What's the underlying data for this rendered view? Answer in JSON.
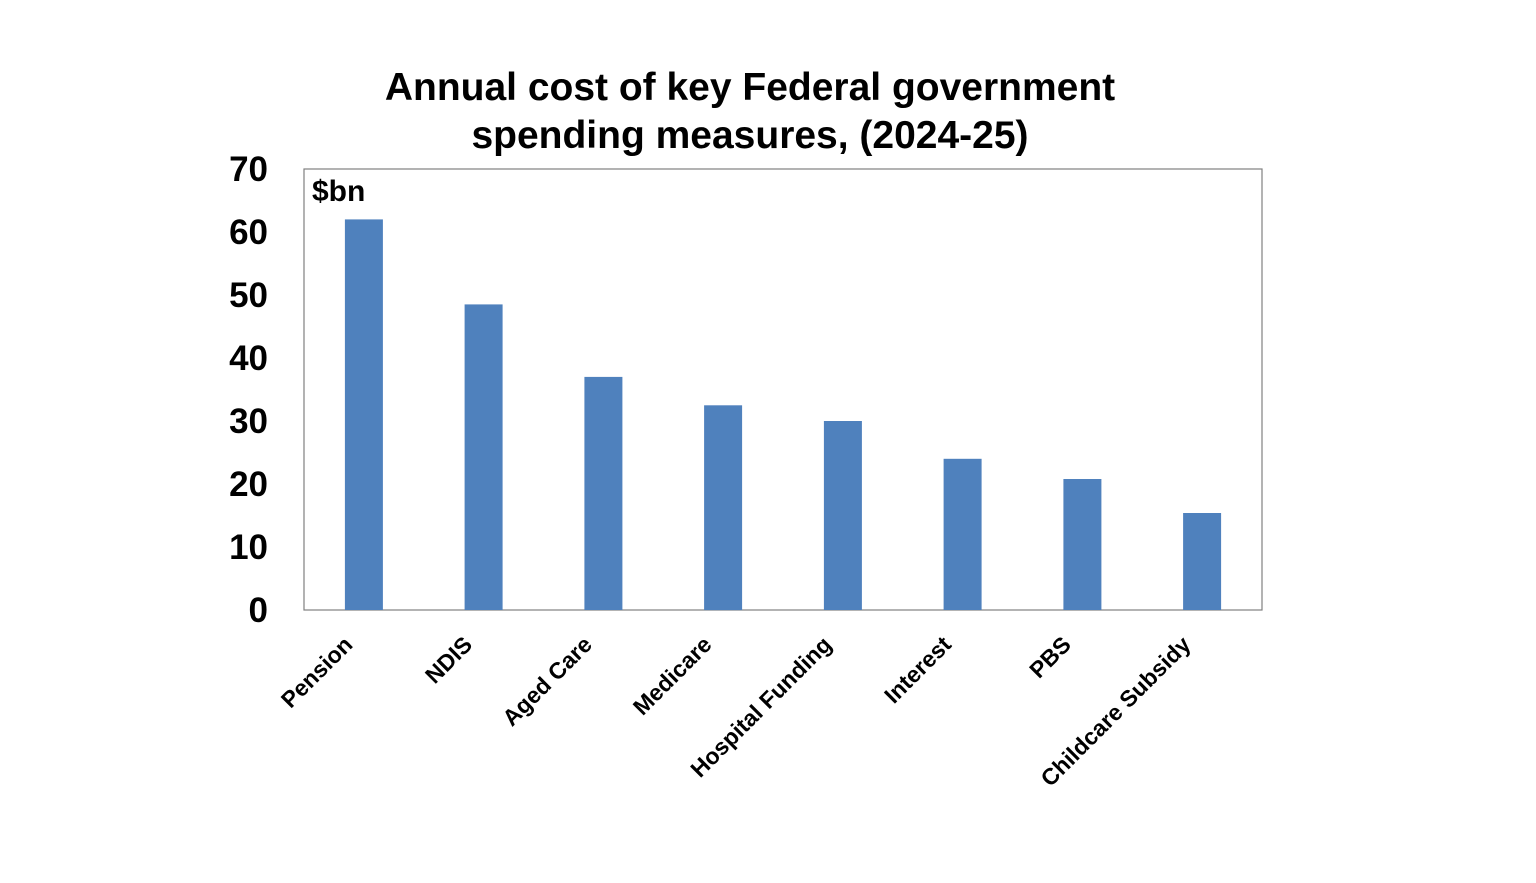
{
  "chart_data": {
    "type": "bar",
    "title_lines": [
      "Annual cost of key Federal government",
      "spending measures, (2024-25)"
    ],
    "unit_label": "$bn",
    "xlabel": "",
    "ylabel": "",
    "ylim": [
      0,
      70
    ],
    "yticks": [
      "0",
      "10",
      "20",
      "30",
      "40",
      "50",
      "60",
      "70"
    ],
    "categories": [
      "Pension",
      "NDIS",
      "Aged Care",
      "Medicare",
      "Hospital Funding",
      "Interest",
      "PBS",
      "Childcare Subsidy"
    ],
    "values": [
      62,
      48.5,
      37,
      32.5,
      30,
      24,
      20.8,
      15.4
    ],
    "bar_color": "#4F81BD",
    "grid": false,
    "legend": "none"
  }
}
